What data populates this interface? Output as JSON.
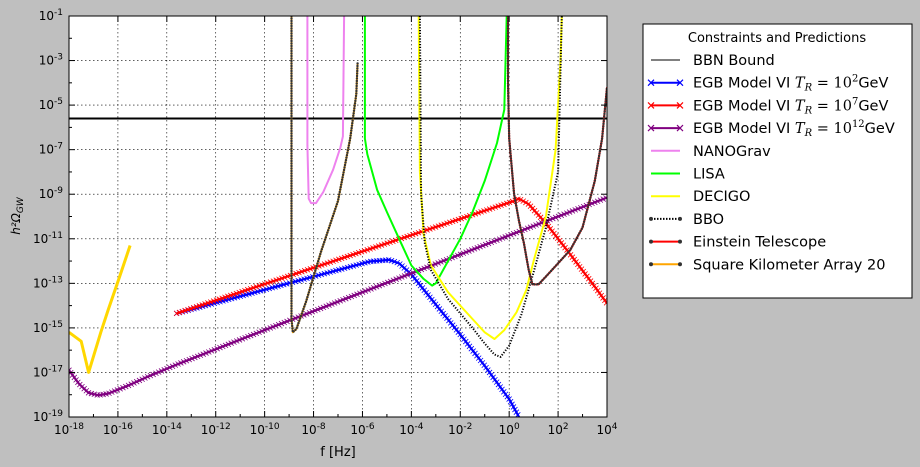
{
  "chart_data": {
    "type": "line",
    "xlabel": "f [Hz]",
    "ylabel": "h²Ω",
    "ylabel_sub": "GW",
    "xscale": "log",
    "yscale": "log",
    "xlim_exp": [
      -18,
      4
    ],
    "ylim_exp": [
      -19,
      -1
    ],
    "x_ticks": [
      {
        "base": "10",
        "exp": "-18"
      },
      {
        "base": "10",
        "exp": "-16"
      },
      {
        "base": "10",
        "exp": "-14"
      },
      {
        "base": "10",
        "exp": "-12"
      },
      {
        "base": "10",
        "exp": "-10"
      },
      {
        "base": "10",
        "exp": "-8"
      },
      {
        "base": "10",
        "exp": "-6"
      },
      {
        "base": "10",
        "exp": "-4"
      },
      {
        "base": "10",
        "exp": "-2"
      },
      {
        "base": "10",
        "exp": "0"
      },
      {
        "base": "10",
        "exp": "2"
      },
      {
        "base": "10",
        "exp": "4"
      }
    ],
    "y_ticks": [
      {
        "base": "10",
        "exp": "-19"
      },
      {
        "base": "10",
        "exp": "-17"
      },
      {
        "base": "10",
        "exp": "-15"
      },
      {
        "base": "10",
        "exp": "-13"
      },
      {
        "base": "10",
        "exp": "-11"
      },
      {
        "base": "10",
        "exp": "-9"
      },
      {
        "base": "10",
        "exp": "-7"
      },
      {
        "base": "10",
        "exp": "-5"
      },
      {
        "base": "10",
        "exp": "-3"
      },
      {
        "base": "10",
        "exp": "-1"
      }
    ],
    "grid": true,
    "legend": {
      "title": "Constraints and Predictions",
      "position": "outside-right"
    },
    "series": [
      {
        "name": "BBN Bound",
        "color": "#000000",
        "style": "solid",
        "points": [
          [
            -18,
            -5.6
          ],
          [
            4,
            -5.6
          ]
        ]
      },
      {
        "name": "EGB Model VI T_R = 10^2 GeV",
        "label_main": "EGB Model VI ",
        "label_math": "T",
        "label_sub": "R",
        "label_eq": " = 10",
        "label_sup": "2",
        "label_unit": "GeV",
        "color": "#0000ff",
        "style": "x-marker",
        "points": [
          [
            -13.6,
            -14.35
          ],
          [
            -5.7,
            -12.02
          ],
          [
            -4.9,
            -11.95
          ],
          [
            -4.5,
            -12.1
          ],
          [
            -4,
            -12.6
          ],
          [
            -3,
            -13.95
          ],
          [
            -2,
            -15.3
          ],
          [
            -1,
            -16.7
          ],
          [
            0,
            -18.2
          ],
          [
            0.4,
            -19
          ]
        ]
      },
      {
        "name": "EGB Model VI T_R = 10^7 GeV",
        "label_main": "EGB Model VI ",
        "label_math": "T",
        "label_sub": "R",
        "label_eq": " = 10",
        "label_sup": "7",
        "label_unit": "GeV",
        "color": "#ff0000",
        "style": "x-marker",
        "points": [
          [
            -13.6,
            -14.35
          ],
          [
            0.2,
            -9.3
          ],
          [
            0.4,
            -9.2
          ],
          [
            0.8,
            -9.45
          ],
          [
            1.5,
            -10.3
          ],
          [
            2.5,
            -11.7
          ],
          [
            3.5,
            -13.15
          ],
          [
            4,
            -13.9
          ]
        ]
      },
      {
        "name": "EGB Model VI T_R = 10^12 GeV",
        "label_main": "EGB Model VI ",
        "label_math": "T",
        "label_sub": "R",
        "label_eq": " = 10",
        "label_sup": "12",
        "label_unit": "GeV",
        "color": "#800080",
        "style": "x-marker",
        "points": [
          [
            -18,
            -16.9
          ],
          [
            -17.6,
            -17.5
          ],
          [
            -17.2,
            -17.92
          ],
          [
            -16.8,
            -18.02
          ],
          [
            -16.4,
            -17.95
          ],
          [
            -15.6,
            -17.6
          ],
          [
            -14.8,
            -17.2
          ],
          [
            -13.6,
            -16.65
          ],
          [
            -10,
            -15.1
          ],
          [
            -8,
            -14.25
          ],
          [
            -6,
            -13.4
          ],
          [
            -4,
            -12.55
          ],
          [
            -2,
            -11.7
          ],
          [
            0,
            -10.85
          ],
          [
            2,
            -10
          ],
          [
            4,
            -9.15
          ]
        ]
      },
      {
        "name": "NANOGrav",
        "color": "#ee82ee",
        "style": "solid",
        "points": [
          [
            -8.25,
            -1
          ],
          [
            -8.25,
            -6.8
          ],
          [
            -8.2,
            -9.2
          ],
          [
            -8.1,
            -9.4
          ],
          [
            -7.9,
            -9.4
          ],
          [
            -7.6,
            -8.9
          ],
          [
            -7.2,
            -7.9
          ],
          [
            -6.9,
            -6.9
          ],
          [
            -6.8,
            -6.4
          ],
          [
            -6.75,
            -1
          ]
        ]
      },
      {
        "name": "LISA",
        "color": "#00ff00",
        "style": "solid",
        "points": [
          [
            -5.9,
            -1
          ],
          [
            -5.9,
            -6.5
          ],
          [
            -5.8,
            -7.2
          ],
          [
            -5.4,
            -8.8
          ],
          [
            -5,
            -9.8
          ],
          [
            -4.5,
            -11
          ],
          [
            -4,
            -12.2
          ],
          [
            -3.5,
            -12.8
          ],
          [
            -3.15,
            -13.1
          ],
          [
            -3,
            -13
          ],
          [
            -2.5,
            -12
          ],
          [
            -2,
            -11
          ],
          [
            -1.5,
            -9.8
          ],
          [
            -1,
            -8.4
          ],
          [
            -0.5,
            -6.7
          ],
          [
            -0.2,
            -5.2
          ],
          [
            -0.1,
            -1
          ]
        ]
      },
      {
        "name": "DECIGO",
        "color": "#ffff00",
        "style": "solid",
        "points": [
          [
            -3.7,
            -1
          ],
          [
            -3.65,
            -8
          ],
          [
            -3.5,
            -10.8
          ],
          [
            -3.2,
            -12.2
          ],
          [
            -2.5,
            -13.4
          ],
          [
            -1.5,
            -14.6
          ],
          [
            -1,
            -15.2
          ],
          [
            -0.6,
            -15.5
          ],
          [
            -0.2,
            -15.1
          ],
          [
            0.3,
            -14.3
          ],
          [
            0.7,
            -13.3
          ],
          [
            1,
            -12
          ],
          [
            1.5,
            -10
          ],
          [
            1.9,
            -7
          ],
          [
            2.1,
            -3
          ],
          [
            2.15,
            -1
          ]
        ]
      },
      {
        "name": "BBO",
        "color": "#000000",
        "style": "dotted-marker",
        "points": [
          [
            -3.65,
            -1
          ],
          [
            -3.6,
            -9
          ],
          [
            -3.45,
            -11.2
          ],
          [
            -3.2,
            -12.4
          ],
          [
            -2.5,
            -13.7
          ],
          [
            -1.5,
            -15
          ],
          [
            -1,
            -15.7
          ],
          [
            -0.6,
            -16.2
          ],
          [
            -0.35,
            -16.3
          ],
          [
            0,
            -15.8
          ],
          [
            0.5,
            -14.4
          ],
          [
            1,
            -12.5
          ],
          [
            1.5,
            -10.5
          ],
          [
            2,
            -8
          ],
          [
            2.15,
            -1
          ]
        ]
      },
      {
        "name": "Einstein Telescope",
        "color": "#ff0000",
        "style": "solid-marker",
        "points": [
          [
            -0.05,
            -1
          ],
          [
            -0.05,
            -4
          ],
          [
            0,
            -6.5
          ],
          [
            0.2,
            -9
          ],
          [
            0.4,
            -10.2
          ],
          [
            0.6,
            -11.2
          ],
          [
            0.8,
            -12.4
          ],
          [
            0.95,
            -13.05
          ],
          [
            1.2,
            -13.05
          ],
          [
            1.5,
            -12.7
          ],
          [
            2,
            -12.1
          ],
          [
            2.5,
            -11.5
          ],
          [
            3,
            -10.5
          ],
          [
            3.5,
            -8.4
          ],
          [
            3.8,
            -6.5
          ],
          [
            4,
            -4.2
          ]
        ]
      },
      {
        "name": "Square Kilometer Array 20",
        "color": "#ffa500",
        "style": "solid-marker",
        "points": [
          [
            -8.9,
            -1
          ],
          [
            -8.9,
            -14.6
          ],
          [
            -8.85,
            -15.2
          ],
          [
            -8.7,
            -15.05
          ],
          [
            -8.3,
            -13.8
          ],
          [
            -7.7,
            -11.6
          ],
          [
            -7,
            -9.3
          ],
          [
            -6.5,
            -6.5
          ],
          [
            -6.25,
            -4.5
          ],
          [
            -6.2,
            -3.1
          ]
        ]
      },
      {
        "name": "",
        "color": "#ffd700",
        "style": "solid",
        "points": [
          [
            -18,
            -15.2
          ],
          [
            -17.5,
            -15.6
          ],
          [
            -17.2,
            -17.0
          ],
          [
            -16.7,
            -15.2
          ],
          [
            -16.4,
            -14.2
          ],
          [
            -15.9,
            -12.6
          ],
          [
            -15.5,
            -11.3
          ]
        ]
      }
    ]
  }
}
